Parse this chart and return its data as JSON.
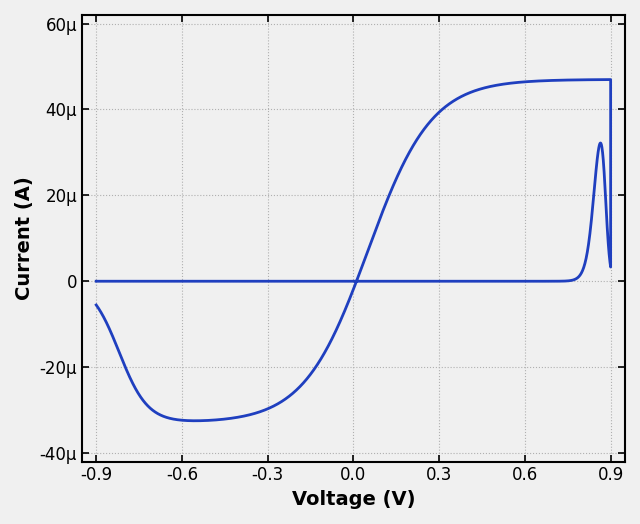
{
  "xlabel": "Voltage (V)",
  "ylabel": "Current (A)",
  "xlim": [
    -0.95,
    0.95
  ],
  "ylim": [
    -4.2e-05,
    6.2e-05
  ],
  "xticks": [
    -0.9,
    -0.6,
    -0.3,
    0.0,
    0.3,
    0.6,
    0.9
  ],
  "yticks": [
    -4e-05,
    -2e-05,
    0,
    2e-05,
    4e-05,
    6e-05
  ],
  "ytick_labels": [
    "-40μ",
    "-20μ",
    "0",
    "20μ",
    "40μ",
    "60μ"
  ],
  "xtick_labels": [
    "-0.9",
    "-0.6",
    "-0.3",
    "0.0",
    "0.3",
    "0.6",
    "0.9"
  ],
  "line_color": "#1f3fbf",
  "line_width": 2.0,
  "grid_color": "#b0b0b0",
  "grid_style": ":",
  "background_color": "#f0f0f0",
  "xlabel_fontsize": 14,
  "ylabel_fontsize": 14,
  "tick_fontsize": 12,
  "figsize": [
    6.4,
    5.24
  ],
  "dpi": 100
}
